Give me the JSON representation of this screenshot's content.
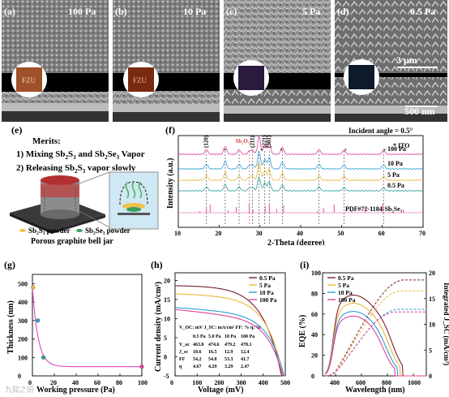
{
  "top_panels": [
    {
      "label": "(a)",
      "pressure": "100 Pa",
      "logo": "FZU"
    },
    {
      "label": "(b)",
      "pressure": "10 Pa",
      "logo": "FZU"
    },
    {
      "label": "(c)",
      "pressure": "5 Pa",
      "logo": ""
    },
    {
      "label": "(d)",
      "pressure": "0.5 Pa",
      "logo": ""
    }
  ],
  "scale_top": "3 μm",
  "scale_bottom": "500 nm",
  "panel_e": {
    "label": "(e)",
    "merits_title": "Merits:",
    "merit1_a": "1) Mixing Sb",
    "merit1_b": "S",
    "merit1_c": " and Sb",
    "merit1_d": "Se",
    "merit1_e": " Vapor",
    "merit2_a": "2) Releasing Sb",
    "merit2_b": "S",
    "merit2_c": " vapor slowly",
    "sub2": "2",
    "sub3": "3",
    "legend1": "Sb₂S₃ powder",
    "legend2": "Sb₂Se₃ powder",
    "caption": "Porous graphite bell jar"
  },
  "chart_data": [
    {
      "id": "f",
      "type": "line",
      "title": "",
      "xlabel": "2-Theta (degree)",
      "ylabel": "Intensity (a.u.)",
      "xlim": [
        10,
        70
      ],
      "xticks": [
        10,
        20,
        30,
        40,
        50,
        60,
        70
      ],
      "annotation": "Incident angle = 0.5°",
      "legend": "* ITO",
      "reference": "PDF#72-1184-Sb₂Se₃",
      "peak_labels": [
        "(120)",
        "Sb₂O₃",
        "(211)",
        "(221)",
        "(301)"
      ],
      "sb2o3_label": "Sb₂O₃",
      "series": [
        {
          "name": "100 Pa",
          "color": "#e0409a"
        },
        {
          "name": "10 Pa",
          "color": "#2a9fd8"
        },
        {
          "name": "5 Pa",
          "color": "#e8b83a"
        },
        {
          "name": "0.5 Pa",
          "color": "#2aa198"
        }
      ],
      "peaks_2theta": [
        16.9,
        21.5,
        24.9,
        27.4,
        28.2,
        29.8,
        31.2,
        32.3,
        35.5,
        44.5,
        50.6,
        60.3
      ]
    },
    {
      "id": "g",
      "type": "scatter",
      "title": "",
      "xlabel": "Working pressure (Pa)",
      "ylabel": "Thickness (nm)",
      "xlim": [
        0,
        100
      ],
      "ylim": [
        0,
        550
      ],
      "xticks": [
        0,
        20,
        40,
        60,
        80,
        100
      ],
      "yticks": [
        0,
        100,
        200,
        300,
        400,
        500
      ],
      "x": [
        0.5,
        5,
        10,
        100
      ],
      "y": [
        480,
        300,
        100,
        50
      ],
      "colors": [
        "#e8b83a",
        "#2a9fd8",
        "#2aa198",
        "#e0409a"
      ],
      "fit_color": "#e056c8"
    },
    {
      "id": "h",
      "type": "line",
      "title": "",
      "xlabel": "Voltage (mV)",
      "ylabel": "Current density (mA/cm²)",
      "xlim": [
        0,
        500
      ],
      "ylim": [
        -5,
        22
      ],
      "xticks": [
        0,
        100,
        200,
        300,
        400,
        500
      ],
      "yticks": [
        -5,
        0,
        5,
        10,
        15,
        20
      ],
      "series": [
        {
          "name": "0.5 Pa",
          "color": "#7a1f2b",
          "jsc": 18.6,
          "voc": 463
        },
        {
          "name": "5 Pa",
          "color": "#e8b83a",
          "jsc": 16.5,
          "voc": 474.6
        },
        {
          "name": "10 Pa",
          "color": "#2a9fd8",
          "jsc": 12.9,
          "voc": 479.2
        },
        {
          "name": "100 Pa",
          "color": "#e0409a",
          "jsc": 12.4,
          "voc": 478.1
        }
      ],
      "table": {
        "header": [
          "V_OC: mV  J_SC: mA/cm²  FF: %  η: %"
        ],
        "columns": [
          "",
          "0.5 Pa",
          "5.0 Pa",
          "10 Pa",
          "100 Pa"
        ],
        "rows": [
          [
            "V_oc",
            "463.0",
            "474.6",
            "479.2",
            "478.1"
          ],
          [
            "J_sc",
            "18.6",
            "16.5",
            "12.9",
            "12.4"
          ],
          [
            "FF",
            "54.2",
            "54.8",
            "53.3",
            "41.7"
          ],
          [
            "η",
            "4.67",
            "4.29",
            "3.29",
            "2.47"
          ]
        ]
      }
    },
    {
      "id": "i",
      "type": "line",
      "title": "",
      "xlabel": "Wavelength (nm)",
      "ylabel": "EQE (%)",
      "y2label": "Integrated J_SC (mA/cm²)",
      "xlim": [
        300,
        1100
      ],
      "ylim": [
        0,
        100
      ],
      "y2lim": [
        0,
        20
      ],
      "xticks": [
        400,
        600,
        800,
        1000
      ],
      "yticks": [
        0,
        20,
        40,
        60,
        80,
        100
      ],
      "y2ticks": [
        0,
        5,
        10,
        15,
        20
      ],
      "series": [
        {
          "name": "0.5 Pa",
          "color": "#7a1f2b"
        },
        {
          "name": "5 Pa",
          "color": "#e8b83a"
        },
        {
          "name": "10 Pa",
          "color": "#2a9fd8"
        },
        {
          "name": "100 Pa",
          "color": "#e0409a"
        }
      ]
    }
  ],
  "labels": {
    "g": "(g)",
    "h": "(h)",
    "i": "(i)",
    "f": "(f)"
  },
  "watermark": "九知之研"
}
